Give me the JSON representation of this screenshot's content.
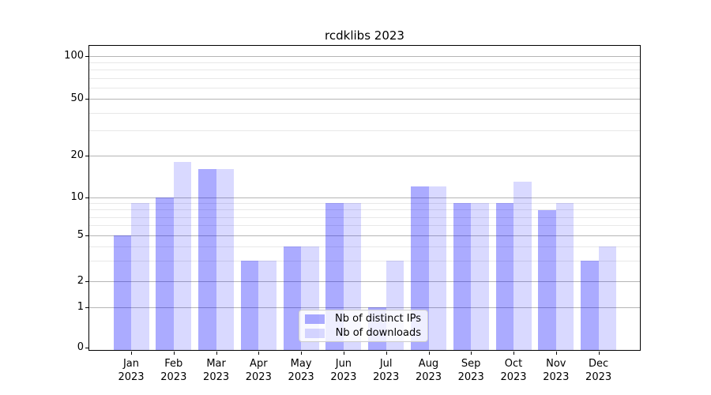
{
  "title": "rcdklibs 2023",
  "legend": {
    "items": [
      {
        "label": "Nb of distinct IPs",
        "color": "rgba(0,0,255,0.33)"
      },
      {
        "label": "Nb of downloads",
        "color": "rgba(0,0,255,0.15)"
      }
    ]
  },
  "axes": {
    "y_major_ticks": [
      100,
      50,
      20,
      10,
      5,
      2,
      1,
      0
    ],
    "y_minor_ticks": [
      3,
      4,
      6,
      7,
      8,
      9,
      30,
      40,
      60,
      70,
      80,
      90
    ]
  },
  "chart_data": {
    "type": "bar",
    "title": "rcdklibs 2023",
    "categories": [
      "Jan 2023",
      "Feb 2023",
      "Mar 2023",
      "Apr 2023",
      "May 2023",
      "Jun 2023",
      "Jul 2023",
      "Aug 2023",
      "Sep 2023",
      "Oct 2023",
      "Nov 2023",
      "Dec 2023"
    ],
    "months": [
      "Jan",
      "Feb",
      "Mar",
      "Apr",
      "May",
      "Jun",
      "Jul",
      "Aug",
      "Sep",
      "Oct",
      "Nov",
      "Dec"
    ],
    "year": "2023",
    "series": [
      {
        "name": "Nb of distinct IPs",
        "color": "rgba(0,0,255,0.33)",
        "values": [
          5,
          10,
          16,
          3,
          4,
          9,
          1,
          12,
          9,
          9,
          8,
          3
        ]
      },
      {
        "name": "Nb of downloads",
        "color": "rgba(0,0,255,0.15)",
        "values": [
          9,
          18,
          16,
          3,
          4,
          9,
          3,
          12,
          9,
          13,
          9,
          4
        ]
      }
    ],
    "xlabel": "",
    "ylabel": "",
    "yscale": "symlog",
    "ylim": [
      0,
      100
    ],
    "y_major_ticks": [
      0,
      1,
      2,
      5,
      10,
      20,
      50,
      100
    ],
    "y_minor_ticks": [
      3,
      4,
      6,
      7,
      8,
      9,
      30,
      40,
      60,
      70,
      80,
      90
    ],
    "grid": true,
    "legend_position": "lower center"
  }
}
